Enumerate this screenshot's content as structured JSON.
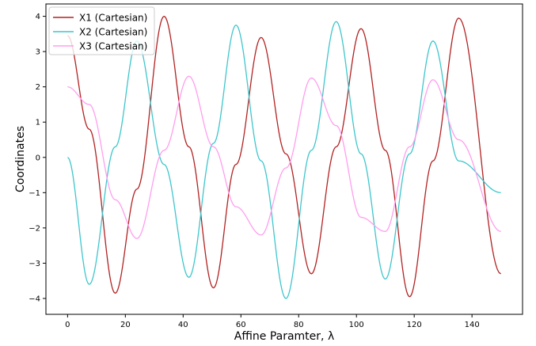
{
  "chart_data": {
    "type": "line",
    "xlabel": "Affine Paramter, λ",
    "ylabel": "Coordinates",
    "xlim": [
      -7.5,
      157.5
    ],
    "ylim": [
      -4.45,
      4.35
    ],
    "x_ticks": [
      0,
      20,
      40,
      60,
      80,
      100,
      120,
      140
    ],
    "y_ticks": [
      -4,
      -3,
      -2,
      -1,
      0,
      1,
      2,
      3,
      4
    ],
    "x_tick_labels": [
      "0",
      "20",
      "40",
      "60",
      "80",
      "100",
      "120",
      "140"
    ],
    "y_tick_labels": [
      "−4",
      "−3",
      "−2",
      "−1",
      "0",
      "1",
      "2",
      "3",
      "4"
    ],
    "grid": false,
    "legend_position": "top-left",
    "x": [
      0,
      7.5,
      16.5,
      24,
      33.4,
      42,
      50.5,
      58.3,
      67,
      75.6,
      84.4,
      93,
      101.6,
      110,
      118.4,
      126.5,
      135.4,
      150
    ],
    "series": [
      {
        "name": "X1 (Cartesian)",
        "color": "#b22222",
        "values": [
          3.45,
          0.8,
          -3.85,
          -0.9,
          4.0,
          0.3,
          -3.7,
          -0.2,
          3.4,
          0.1,
          -3.3,
          0.3,
          3.65,
          0.2,
          -3.95,
          -0.1,
          3.95,
          -3.3
        ]
      },
      {
        "name": "X2 (Cartesian)",
        "color": "#3ec6cc",
        "values": [
          0.0,
          -3.6,
          0.3,
          3.3,
          -0.2,
          -3.4,
          0.4,
          3.75,
          -0.1,
          -4.0,
          0.2,
          3.85,
          0.1,
          -3.45,
          0.1,
          3.3,
          -0.1,
          -1.0
        ]
      },
      {
        "name": "X3 (Cartesian)",
        "color": "#ff9eee",
        "values": [
          2.0,
          1.5,
          -1.2,
          -2.3,
          0.2,
          2.3,
          0.3,
          -1.4,
          -2.2,
          -0.3,
          2.25,
          0.9,
          -1.7,
          -2.1,
          0.3,
          2.2,
          0.5,
          -2.1
        ]
      }
    ]
  }
}
